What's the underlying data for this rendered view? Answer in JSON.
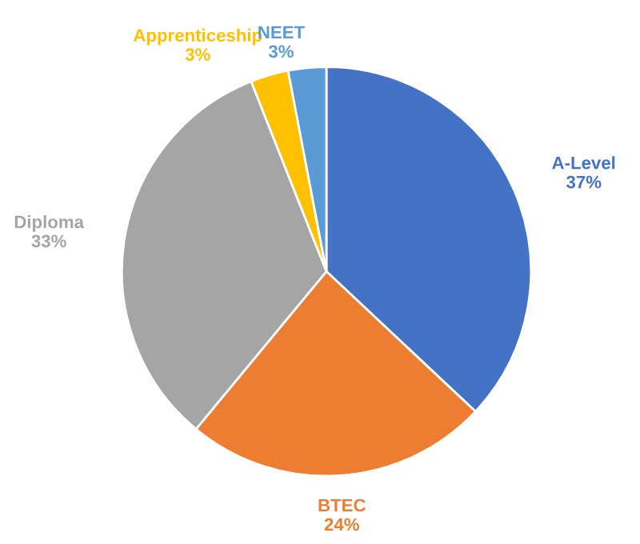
{
  "chart_data": {
    "type": "pie",
    "categories": [
      "A-Level",
      "BTEC",
      "Diploma",
      "Apprenticeship",
      "NEET"
    ],
    "values": [
      37,
      24,
      33,
      3,
      3
    ],
    "value_labels": [
      "37%",
      "24%",
      "33%",
      "3%",
      "3%"
    ],
    "colors": [
      "#4472c4",
      "#ed7d31",
      "#a5a5a5",
      "#ffc000",
      "#5b9bd5"
    ],
    "legend": false
  }
}
